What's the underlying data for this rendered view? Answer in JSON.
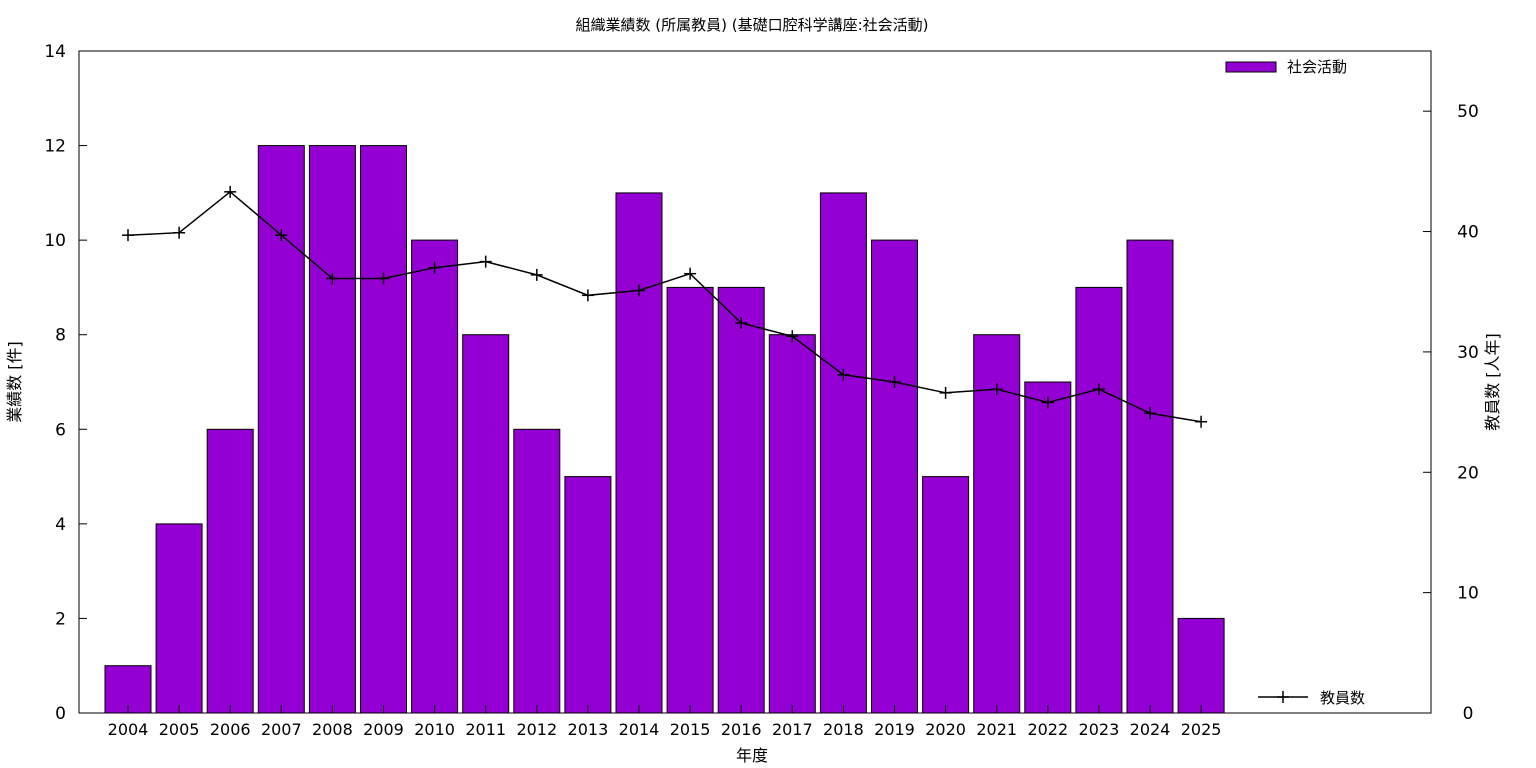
{
  "chart_data": {
    "type": "bar",
    "title": "組織業績数 (所属教員) (基礎口腔科学講座:社会活動)",
    "xlabel": "年度",
    "ylabel": "業績数 [件]",
    "y2label": "教員数 [人年]",
    "categories": [
      "2004",
      "2005",
      "2006",
      "2007",
      "2008",
      "2009",
      "2010",
      "2011",
      "2012",
      "2013",
      "2014",
      "2015",
      "2016",
      "2017",
      "2018",
      "2019",
      "2020",
      "2021",
      "2022",
      "2023",
      "2024",
      "2025"
    ],
    "series": [
      {
        "name": "社会活動",
        "type": "bar",
        "axis": "left",
        "color": "#9400d3",
        "values": [
          1,
          4,
          6,
          12,
          12,
          12,
          10,
          8,
          6,
          5,
          11,
          9,
          9,
          8,
          11,
          10,
          5,
          8,
          7,
          9,
          10,
          2
        ]
      },
      {
        "name": "教員数",
        "type": "line",
        "axis": "right",
        "color": "#000000",
        "values": [
          39.7,
          39.9,
          43.3,
          39.7,
          36.1,
          36.1,
          37.0,
          37.5,
          36.4,
          34.7,
          35.1,
          36.5,
          32.4,
          31.3,
          28.1,
          27.5,
          26.6,
          26.9,
          25.8,
          26.9,
          24.9,
          24.2
        ]
      }
    ],
    "ylim": [
      0,
      14
    ],
    "y2lim": [
      0,
      55
    ],
    "yticks": [
      0,
      2,
      4,
      6,
      8,
      10,
      12,
      14
    ],
    "y2ticks": [
      0,
      10,
      20,
      30,
      40,
      50
    ],
    "grid": false,
    "legend_placement": "top-right (bars), bottom-right (line)"
  }
}
